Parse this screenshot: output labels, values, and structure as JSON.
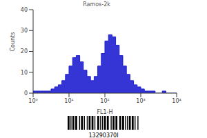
{
  "chart_data": {
    "type": "histogram",
    "title": "Ramos-2k",
    "x_label": "FL1-H",
    "y_label": "Counts",
    "bins": [
      1,
      1.259,
      1.585,
      1.995,
      2.512,
      3.162,
      3.981,
      5.012,
      6.31,
      7.943,
      10,
      12.59,
      15.85,
      19.95,
      25.12,
      31.62,
      39.81,
      50.12,
      63.1,
      79.43,
      100,
      125.9,
      158.5,
      199.5,
      251.2,
      316.2,
      398.1,
      501.2,
      631,
      794.3,
      1000,
      1259,
      1585,
      1995,
      2512,
      3162,
      3981,
      5012,
      6310,
      7943,
      10000
    ],
    "counts": [
      1,
      1,
      1,
      1,
      1,
      2,
      3,
      4,
      6,
      9,
      13,
      17,
      18,
      15,
      11,
      8,
      6,
      8,
      13,
      19,
      25,
      28,
      27,
      23,
      18,
      13,
      9,
      6,
      4,
      3,
      2,
      1,
      1,
      1,
      0,
      0,
      1,
      0,
      0,
      0
    ],
    "xlim": [
      1,
      10000
    ],
    "xticks": [
      {
        "value": 1,
        "label": "10⁰"
      },
      {
        "value": 10,
        "label": "10¹"
      },
      {
        "value": 100,
        "label": "10²"
      },
      {
        "value": 1000,
        "label": "10³"
      },
      {
        "value": 10000,
        "label": "10⁴"
      }
    ],
    "ylim": [
      0,
      40
    ],
    "yticks": [
      0,
      10,
      20,
      30,
      40
    ],
    "log": "x",
    "color": "#1f1fd0",
    "annotation": "13290370I"
  }
}
